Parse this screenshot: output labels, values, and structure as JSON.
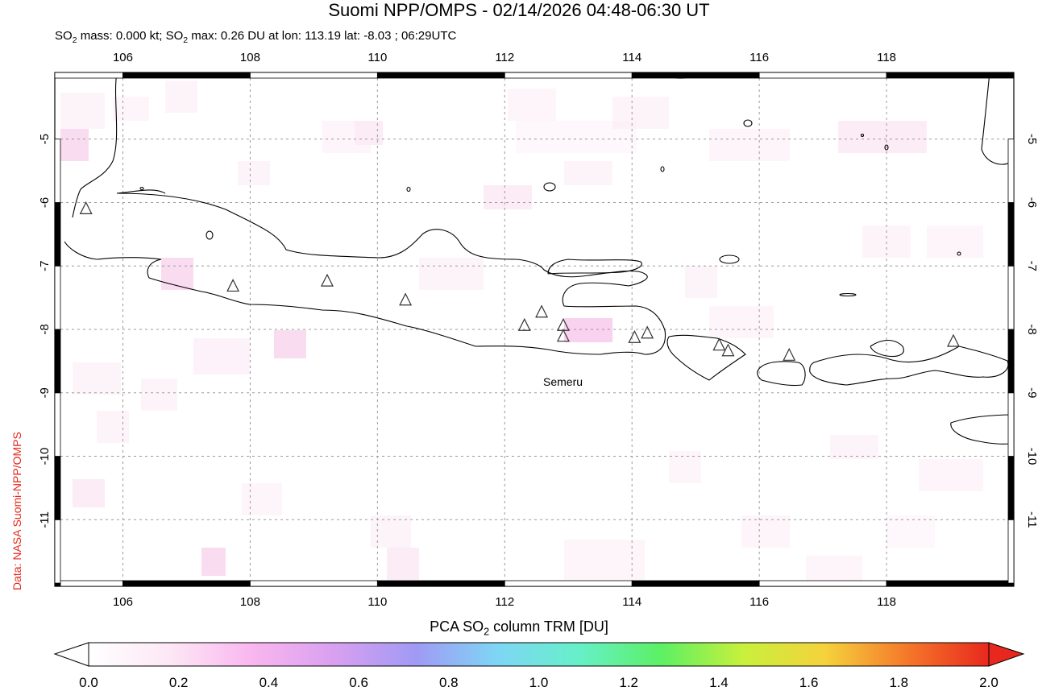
{
  "title": "Suomi NPP/OMPS - 02/14/2026 04:48-06:30 UT",
  "subtitle": {
    "part1": "SO",
    "sub1": "2",
    "part2": " mass: 0.000 kt; SO",
    "sub2": "2",
    "part3": " max: 0.26 DU at lon: 113.19 lat: -8.03 ; 06:29UTC"
  },
  "side_label": "Data: NASA Suomi-NPP/OMPS",
  "volcano_label": "Semeru",
  "colorbar": {
    "title_part1": "PCA SO",
    "title_sub": "2",
    "title_part2": " column TRM [DU]",
    "ticks": [
      "0.0",
      "0.2",
      "0.4",
      "0.6",
      "0.8",
      "1.0",
      "1.2",
      "1.4",
      "1.6",
      "1.8",
      "2.0"
    ],
    "colors": [
      "#ffffff",
      "#fde7f5",
      "#f9b6ef",
      "#d9a0f0",
      "#a09af5",
      "#7ed6f5",
      "#66f0c8",
      "#5cf064",
      "#c8f03c",
      "#f5d23c",
      "#f5782a",
      "#e8281e"
    ]
  },
  "axes": {
    "lon_ticks": [
      "106",
      "108",
      "110",
      "112",
      "114",
      "116",
      "118"
    ],
    "lat_ticks": [
      "-5",
      "-6",
      "-7",
      "-8",
      "-9",
      "-10",
      "-11"
    ],
    "lon_range": [
      104.93,
      120.0
    ],
    "lat_range": [
      -12.05,
      -3.95
    ]
  },
  "volcanoes": [
    {
      "lon": 105.42,
      "lat": -6.1
    },
    {
      "lon": 107.73,
      "lat": -7.32
    },
    {
      "lon": 109.21,
      "lat": -7.24
    },
    {
      "lon": 110.44,
      "lat": -7.54
    },
    {
      "lon": 112.31,
      "lat": -7.94
    },
    {
      "lon": 112.58,
      "lat": -7.73
    },
    {
      "lon": 112.92,
      "lat": -7.94
    },
    {
      "lon": 112.92,
      "lat": -8.11
    },
    {
      "lon": 114.04,
      "lat": -8.13
    },
    {
      "lon": 114.24,
      "lat": -8.06
    },
    {
      "lon": 115.37,
      "lat": -8.25
    },
    {
      "lon": 115.51,
      "lat": -8.34
    },
    {
      "lon": 116.47,
      "lat": -8.41
    },
    {
      "lon": 119.05,
      "lat": -8.19
    }
  ]
}
